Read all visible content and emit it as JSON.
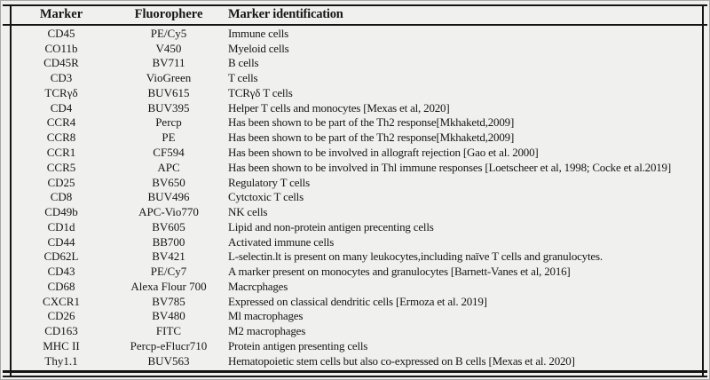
{
  "table": {
    "columns": [
      "Marker",
      "Fluorophere",
      "Marker identification"
    ],
    "rows": [
      [
        "CD45",
        "PE/Cy5",
        "Immune cells"
      ],
      [
        "CO11b",
        "V450",
        "Myeloid cells"
      ],
      [
        "CD45R",
        "BV711",
        "B cells"
      ],
      [
        "CD3",
        "VioGreen",
        "T cells"
      ],
      [
        "TCRγδ",
        "BUV615",
        "TCRγδ T cells"
      ],
      [
        "CD4",
        "BUV395",
        "Helper T cells and monocytes [Mexas et al, 2020]"
      ],
      [
        "CCR4",
        "Percp",
        "Has been shown to be part of the Th2 response[Mkhaketd,2009]"
      ],
      [
        "CCR8",
        "PE",
        "Has been shown to be part of the Th2 response[Mkhaketd,2009]"
      ],
      [
        "CCR1",
        "CF594",
        "Has been shown to be involved in allograft rejection [Gao et al. 2000]"
      ],
      [
        "CCR5",
        "APC",
        "Has been shown to be involved in Thl immune responses [Loetscheer et al, 1998; Cocke et al.2019]"
      ],
      [
        "CD25",
        "BV650",
        "Regulatory T cells"
      ],
      [
        "CD8",
        "BUV496",
        "Cytctoxic T cells"
      ],
      [
        "CD49b",
        "APC-Vio770",
        "NK cells"
      ],
      [
        "CD1d",
        "BV605",
        "Lipid and non-protein antigen precenting cells"
      ],
      [
        "CD44",
        "BB700",
        "Activated immune cells"
      ],
      [
        "CD62L",
        "BV421",
        "L-selectin.lt is present on many leukocytes,including naïve T cells and granulocytes."
      ],
      [
        "CD43",
        "PE/Cy7",
        "A marker present on monocytes and granulocytes [Barnett-Vanes et al, 2016]"
      ],
      [
        "CD68",
        "Alexa Flour 700",
        "Macrcphages"
      ],
      [
        "CXCR1",
        "BV785",
        "Expressed on classical dendritic cells [Ermoza et al. 2019]"
      ],
      [
        "CD26",
        "BV480",
        "Ml macrophages"
      ],
      [
        "CD163",
        "FITC",
        "M2 macrophages"
      ],
      [
        "MHC II",
        "Percp-eFlucr710",
        "Protein antigen presenting cells"
      ],
      [
        "Thy1.1",
        "BUV563",
        "Hematopoietic stem cells but also co-expressed on B cells [Mexas et al. 2020]"
      ]
    ]
  },
  "colors": {
    "background": "#f0f0ee",
    "text": "#161616",
    "rule": "#151515",
    "outer_border": "#a6a6a6"
  }
}
